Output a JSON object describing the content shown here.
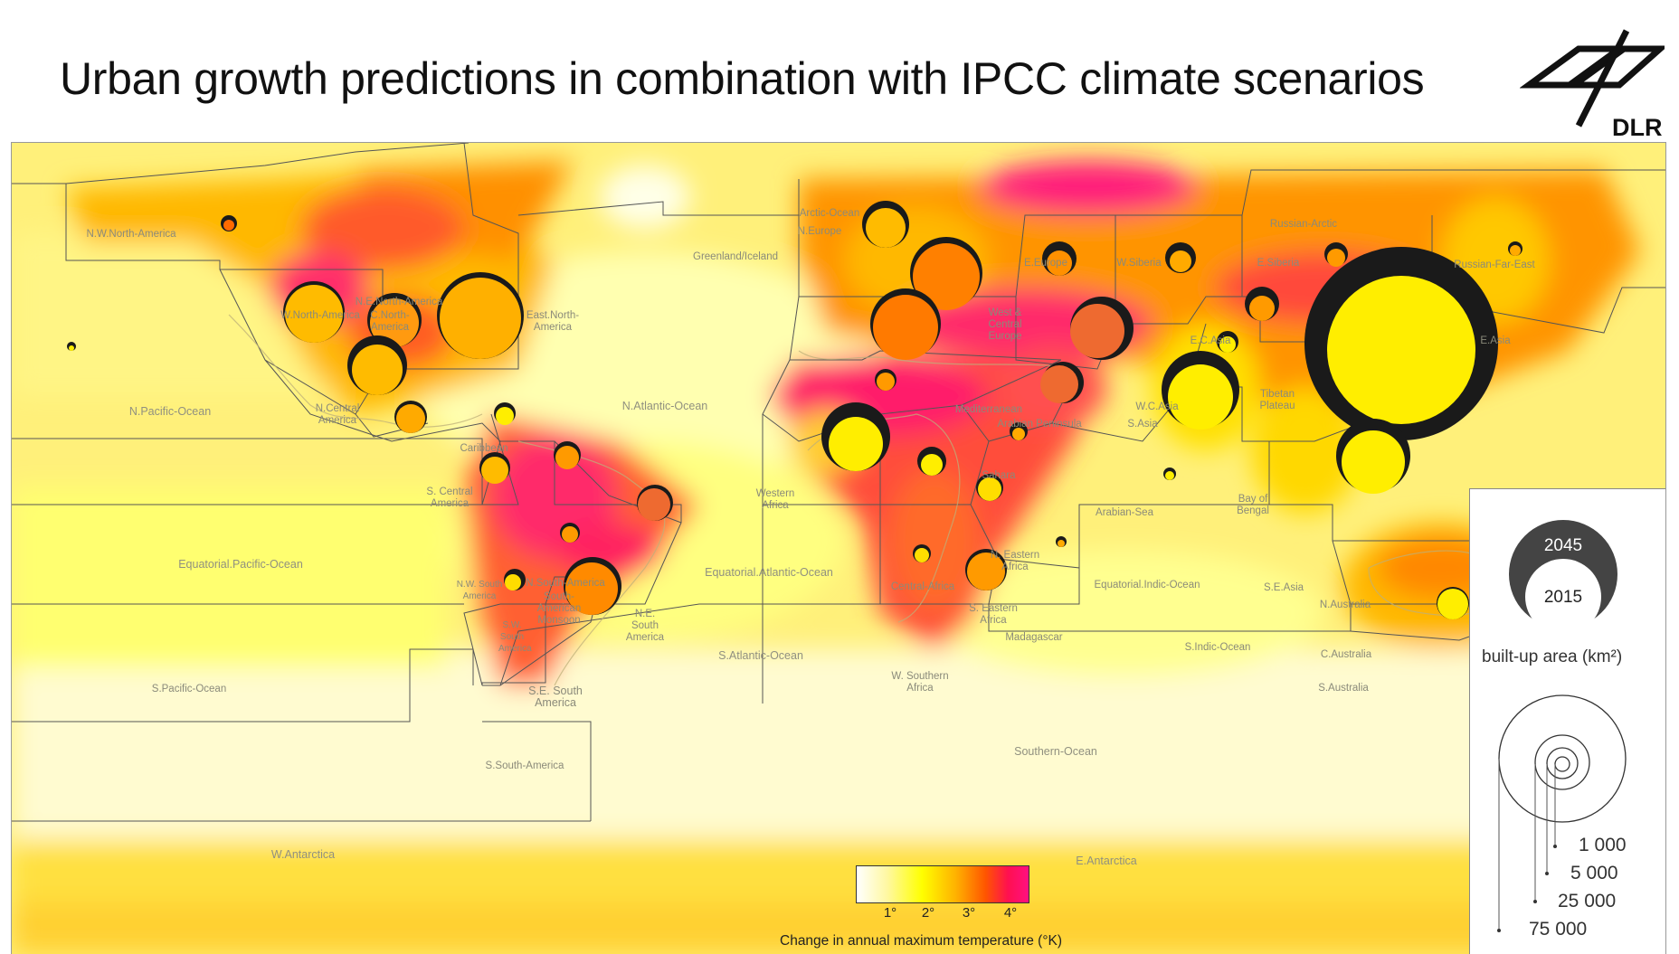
{
  "title": "Urban growth predictions in combination with IPCC climate scenarios",
  "logo": {
    "text": "DLR",
    "name": "dlr-logo"
  },
  "regions": [
    {
      "id": "nw-north-america",
      "label": "N.W.North-America"
    },
    {
      "id": "greenland",
      "label": "Greenland/Iceland"
    },
    {
      "id": "arctic-ocean",
      "label": "Arctic-Ocean"
    },
    {
      "id": "n-europe",
      "label": "N.Europe"
    },
    {
      "id": "russian-arctic",
      "label": "Russian-Arctic"
    },
    {
      "id": "e-europe",
      "label": "E.Europe"
    },
    {
      "id": "w-siberia",
      "label": "W.Siberia"
    },
    {
      "id": "e-siberia",
      "label": "E.Siberia"
    },
    {
      "id": "russian-far-east",
      "label": "Russian-Far-East"
    },
    {
      "id": "w-north-america",
      "label": "W.North-America"
    },
    {
      "id": "ne-north-america",
      "label": "N.E.North-America"
    },
    {
      "id": "c-north-america",
      "label": "C.North-America"
    },
    {
      "id": "e-north-america",
      "label": "East.North-America"
    },
    {
      "id": "west-central-europe",
      "label": "West & Central Europe"
    },
    {
      "id": "ec-asia",
      "label": "E.C.Asia"
    },
    {
      "id": "e-asia",
      "label": "E.Asia"
    },
    {
      "id": "n-pacific",
      "label": "N.Pacific-Ocean"
    },
    {
      "id": "n-central-america",
      "label": "N.Central America"
    },
    {
      "id": "n-atlantic",
      "label": "N.Atlantic-Ocean"
    },
    {
      "id": "mediterranean",
      "label": "Mediterranean"
    },
    {
      "id": "wc-asia",
      "label": "W.C.Asia"
    },
    {
      "id": "tibetan",
      "label": "Tibetan Plateau"
    },
    {
      "id": "arabian-pen",
      "label": "Arabian Peninsula"
    },
    {
      "id": "s-asia",
      "label": "S.Asia"
    },
    {
      "id": "caribbean",
      "label": "Caribbean"
    },
    {
      "id": "sahara",
      "label": "Sahara"
    },
    {
      "id": "s-central-america",
      "label": "S. Central America"
    },
    {
      "id": "western-africa",
      "label": "Western Africa"
    },
    {
      "id": "arabian-sea",
      "label": "Arabian-Sea"
    },
    {
      "id": "bay-of-bengal",
      "label": "Bay of Bengal"
    },
    {
      "id": "eq-pacific",
      "label": "Equatorial.Pacific-Ocean"
    },
    {
      "id": "eq-atlantic",
      "label": "Equatorial.Atlantic-Ocean"
    },
    {
      "id": "ne-africa",
      "label": "N. Eastern Africa"
    },
    {
      "id": "eq-indic",
      "label": "Equatorial.Indic-Ocean"
    },
    {
      "id": "central-africa",
      "label": "Central-Africa"
    },
    {
      "id": "se-asia",
      "label": "S.E.Asia"
    },
    {
      "id": "nw-south-america",
      "label": "N.W. South America"
    },
    {
      "id": "nsouth-america",
      "label": "N.South-America"
    },
    {
      "id": "sam-monsoon",
      "label": "South-American Monsoon"
    },
    {
      "id": "ne-south-america",
      "label": "N.E. South America"
    },
    {
      "id": "n-australia",
      "label": "N.Australia"
    },
    {
      "id": "sw-south-america",
      "label": "S.W. South America"
    },
    {
      "id": "se-africa",
      "label": "S. Eastern Africa"
    },
    {
      "id": "madagascar",
      "label": "Madagascar"
    },
    {
      "id": "s-atlantic",
      "label": "S.Atlantic-Ocean"
    },
    {
      "id": "s-indic",
      "label": "S.Indic-Ocean"
    },
    {
      "id": "c-australia",
      "label": "C.Australia"
    },
    {
      "id": "s-pacific",
      "label": "S.Pacific-Ocean"
    },
    {
      "id": "w-southern-africa",
      "label": "W. Southern Africa"
    },
    {
      "id": "s-australia",
      "label": "S.Australia"
    },
    {
      "id": "se-south-america",
      "label": "S.E. South America"
    },
    {
      "id": "southern-ocean",
      "label": "Southern-Ocean"
    },
    {
      "id": "s-south-america",
      "label": "S.South-America"
    },
    {
      "id": "w-antarctica",
      "label": "W.Antarctica"
    },
    {
      "id": "e-antarctica",
      "label": "E.Antarctica"
    }
  ],
  "legend": {
    "year_future": "2045",
    "year_current": "2015",
    "title": "built-up area (km²)",
    "values": [
      "1 000",
      "5 000",
      "25 000",
      "75 000"
    ]
  },
  "colorbar": {
    "ticks": [
      "1°",
      "2°",
      "3°",
      "4°"
    ],
    "title": "Change in annual maximum temperature (°K)",
    "colors": [
      "#ffffff",
      "#fff8a0",
      "#ffff00",
      "#ffb000",
      "#ff5500",
      "#ff1050",
      "#ff1080"
    ]
  },
  "colors": {
    "future_circle": "#1a1a1a",
    "legend_dark": "#444444"
  }
}
